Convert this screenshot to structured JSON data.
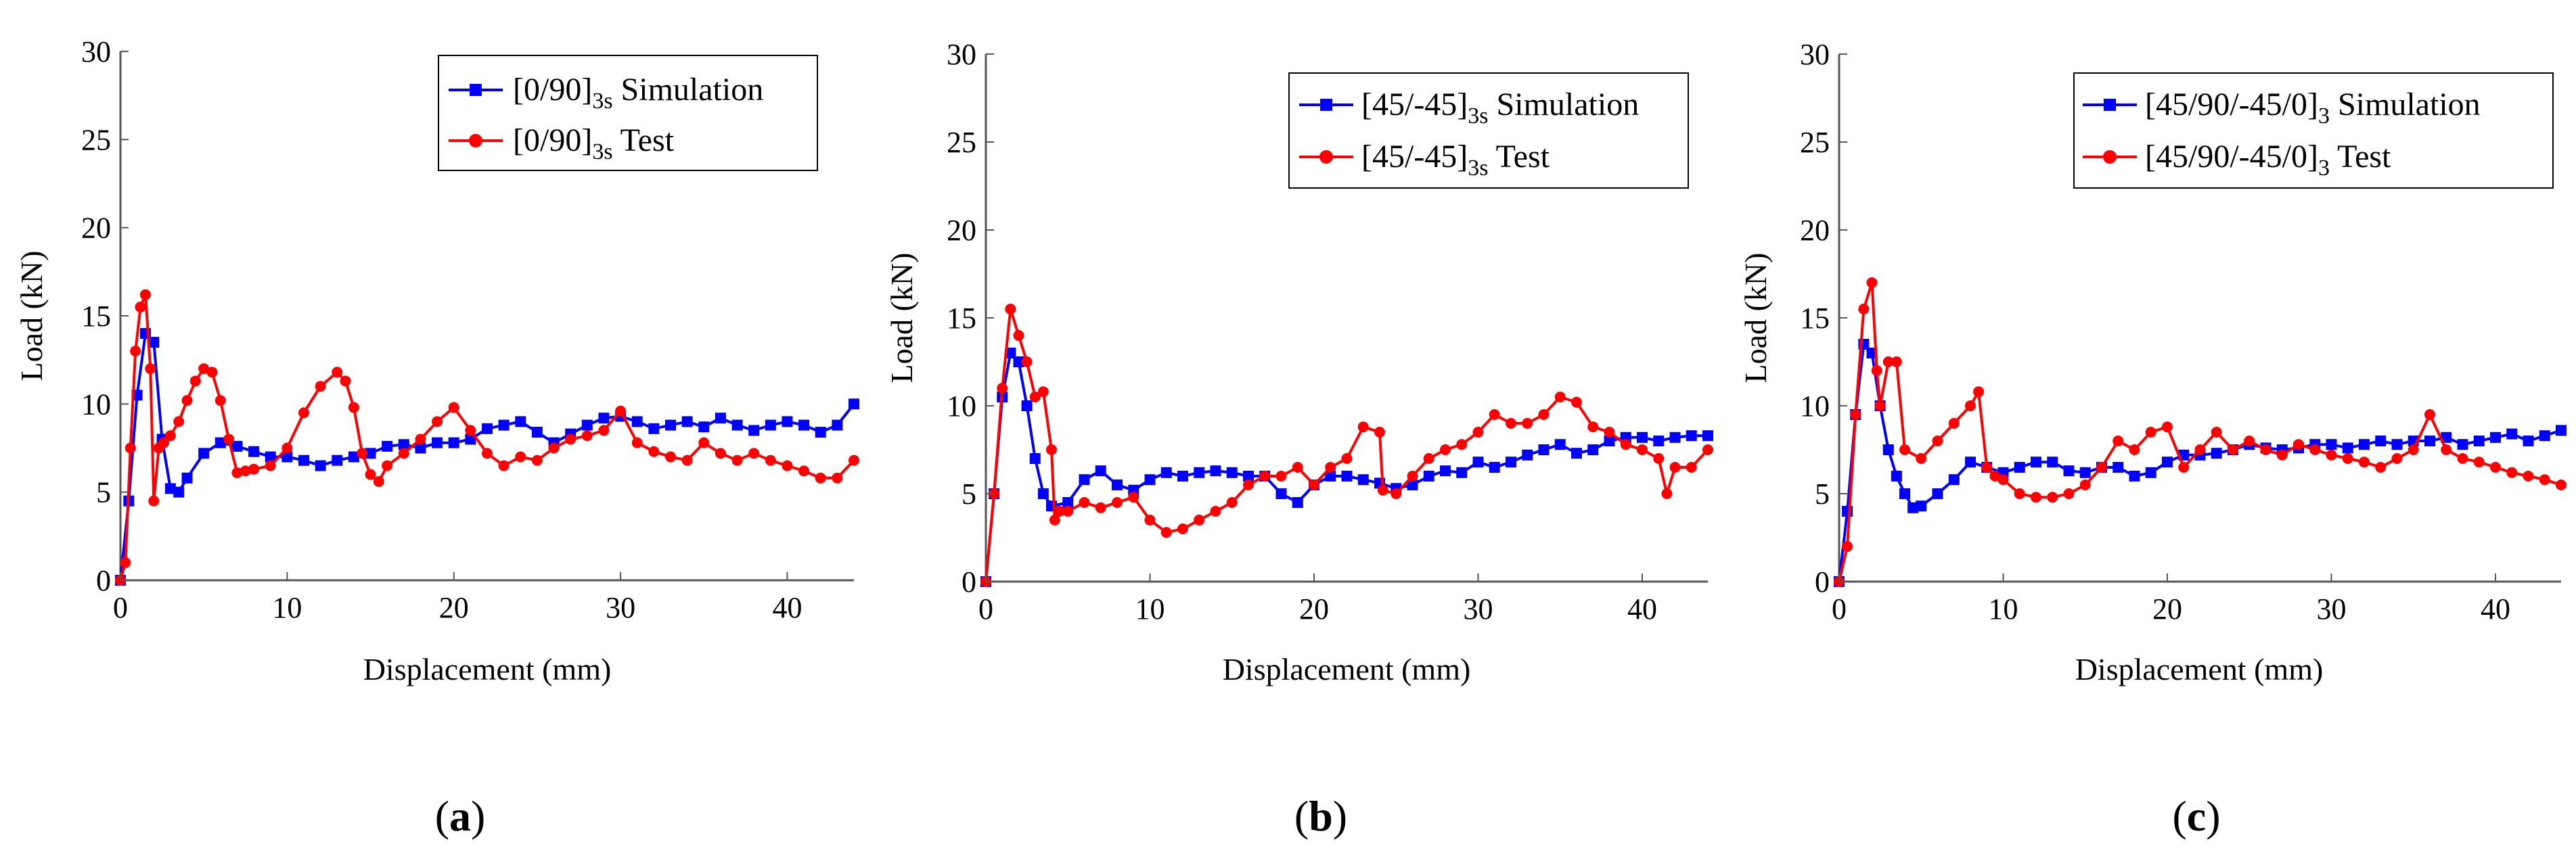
{
  "chart_data": [
    {
      "panel": "a",
      "type": "line",
      "caption_open": "(",
      "caption_letter": "a",
      "caption_close": ")",
      "xlabel": "Displacement (mm)",
      "ylabel": "Load (kN)",
      "xlim": [
        0,
        44
      ],
      "ylim": [
        0,
        30
      ],
      "xticks": [
        0,
        10,
        20,
        30,
        40
      ],
      "yticks": [
        0,
        5,
        10,
        15,
        20,
        25,
        30
      ],
      "grid": false,
      "legend_position": "top-right",
      "series": [
        {
          "name": "[0/90]3s Simulation",
          "legend_main": "[0/90]",
          "legend_sub": "3s",
          "legend_tail": " Simulation",
          "color": "#0000ff",
          "marker": "square",
          "x": [
            0,
            0.5,
            1.0,
            1.5,
            2.0,
            2.5,
            3.0,
            3.5,
            4.0,
            5.0,
            6.0,
            7.0,
            8.0,
            9.0,
            10.0,
            11.0,
            12.0,
            13.0,
            14.0,
            15.0,
            16.0,
            17.0,
            18.0,
            19.0,
            20.0,
            21.0,
            22.0,
            23.0,
            24.0,
            25.0,
            26.0,
            27.0,
            28.0,
            29.0,
            30.0,
            31.0,
            32.0,
            33.0,
            34.0,
            35.0,
            36.0,
            37.0,
            38.0,
            39.0,
            40.0,
            41.0,
            42.0,
            43.0,
            44.0
          ],
          "y": [
            0,
            4.5,
            10.5,
            14.0,
            13.5,
            8.0,
            5.2,
            5.0,
            5.8,
            7.2,
            7.8,
            7.6,
            7.3,
            7.0,
            7.0,
            6.8,
            6.5,
            6.8,
            7.0,
            7.2,
            7.6,
            7.7,
            7.5,
            7.8,
            7.8,
            8.0,
            8.6,
            8.8,
            9.0,
            8.4,
            7.8,
            8.3,
            8.8,
            9.2,
            9.3,
            9.0,
            8.6,
            8.8,
            9.0,
            8.7,
            9.2,
            8.8,
            8.5,
            8.8,
            9.0,
            8.8,
            8.4,
            8.8,
            10.0
          ]
        },
        {
          "name": "[0/90]3s Test",
          "legend_main": "[0/90]",
          "legend_sub": "3s",
          "legend_tail": " Test",
          "color": "#ff0000",
          "marker": "circle",
          "x": [
            0,
            0.3,
            0.6,
            0.9,
            1.2,
            1.5,
            1.8,
            2.0,
            2.3,
            2.6,
            3.0,
            3.5,
            4.0,
            4.5,
            5.0,
            5.5,
            6.0,
            6.5,
            7.0,
            7.5,
            8.0,
            9.0,
            10.0,
            11.0,
            12.0,
            13.0,
            13.5,
            14.0,
            14.5,
            15.0,
            15.5,
            16.0,
            17.0,
            18.0,
            19.0,
            20.0,
            21.0,
            22.0,
            23.0,
            24.0,
            25.0,
            26.0,
            27.0,
            28.0,
            29.0,
            30.0,
            31.0,
            32.0,
            33.0,
            34.0,
            35.0,
            36.0,
            37.0,
            38.0,
            39.0,
            40.0,
            41.0,
            42.0,
            43.0,
            44.0
          ],
          "y": [
            0,
            1.0,
            7.5,
            13.0,
            15.5,
            16.2,
            12.0,
            4.5,
            7.5,
            7.8,
            8.2,
            9.0,
            10.2,
            11.3,
            12.0,
            11.8,
            10.2,
            8.0,
            6.1,
            6.2,
            6.3,
            6.5,
            7.5,
            9.5,
            11.0,
            11.8,
            11.3,
            9.8,
            7.2,
            6.0,
            5.6,
            6.5,
            7.2,
            8.0,
            9.0,
            9.8,
            8.5,
            7.2,
            6.5,
            7.0,
            6.8,
            7.5,
            8.0,
            8.2,
            8.5,
            9.6,
            7.8,
            7.3,
            7.0,
            6.8,
            7.8,
            7.2,
            6.8,
            7.2,
            6.8,
            6.5,
            6.2,
            5.8,
            5.8,
            6.8
          ]
        }
      ]
    },
    {
      "panel": "b",
      "type": "line",
      "caption_open": "(",
      "caption_letter": "b",
      "caption_close": ")",
      "xlabel": "Displacement (mm)",
      "ylabel": "Load (kN)",
      "xlim": [
        0,
        44
      ],
      "ylim": [
        0,
        30
      ],
      "xticks": [
        0,
        10,
        20,
        30,
        40
      ],
      "yticks": [
        0,
        5,
        10,
        15,
        20,
        25,
        30
      ],
      "grid": false,
      "legend_position": "top-right",
      "series": [
        {
          "name": "[45/-45]3s Simulation",
          "legend_main": "[45/-45]",
          "legend_sub": "3s",
          "legend_tail": " Simulation",
          "color": "#0000ff",
          "marker": "square",
          "x": [
            0,
            0.5,
            1.0,
            1.5,
            2.0,
            2.5,
            3.0,
            3.5,
            4.0,
            5.0,
            6.0,
            7.0,
            8.0,
            9.0,
            10.0,
            11.0,
            12.0,
            13.0,
            14.0,
            15.0,
            16.0,
            17.0,
            18.0,
            19.0,
            20.0,
            21.0,
            22.0,
            23.0,
            24.0,
            25.0,
            26.0,
            27.0,
            28.0,
            29.0,
            30.0,
            31.0,
            32.0,
            33.0,
            34.0,
            35.0,
            36.0,
            37.0,
            38.0,
            39.0,
            40.0,
            41.0,
            42.0,
            43.0,
            44.0
          ],
          "y": [
            0,
            5.0,
            10.5,
            13.0,
            12.5,
            10.0,
            7.0,
            5.0,
            4.3,
            4.5,
            5.8,
            6.3,
            5.5,
            5.2,
            5.8,
            6.2,
            6.0,
            6.2,
            6.3,
            6.2,
            6.0,
            6.0,
            5.0,
            4.5,
            5.5,
            6.0,
            6.0,
            5.8,
            5.6,
            5.3,
            5.5,
            6.0,
            6.3,
            6.2,
            6.8,
            6.5,
            6.8,
            7.2,
            7.5,
            7.8,
            7.3,
            7.5,
            8.0,
            8.2,
            8.2,
            8.0,
            8.2,
            8.3,
            8.3
          ]
        },
        {
          "name": "[45/-45]3s Test",
          "legend_main": "[45/-45]",
          "legend_sub": "3s",
          "legend_tail": " Test",
          "color": "#ff0000",
          "marker": "circle",
          "x": [
            0,
            0.5,
            1.0,
            1.5,
            2.0,
            2.5,
            3.0,
            3.5,
            4.0,
            4.2,
            4.5,
            5.0,
            6.0,
            7.0,
            8.0,
            9.0,
            10.0,
            11.0,
            12.0,
            13.0,
            14.0,
            15.0,
            16.0,
            17.0,
            18.0,
            19.0,
            20.0,
            21.0,
            22.0,
            23.0,
            24.0,
            24.2,
            25.0,
            26.0,
            27.0,
            28.0,
            29.0,
            30.0,
            31.0,
            32.0,
            33.0,
            34.0,
            35.0,
            36.0,
            37.0,
            38.0,
            39.0,
            40.0,
            41.0,
            41.5,
            42.0,
            43.0,
            44.0
          ],
          "y": [
            0,
            5.0,
            11.0,
            15.5,
            14.0,
            12.5,
            10.5,
            10.8,
            7.5,
            3.5,
            4.0,
            4.0,
            4.5,
            4.2,
            4.5,
            4.8,
            3.5,
            2.8,
            3.0,
            3.5,
            4.0,
            4.5,
            5.5,
            6.0,
            6.0,
            6.5,
            5.5,
            6.5,
            7.0,
            8.8,
            8.5,
            5.2,
            5.0,
            6.0,
            7.0,
            7.5,
            7.8,
            8.5,
            9.5,
            9.0,
            9.0,
            9.5,
            10.5,
            10.2,
            8.8,
            8.5,
            7.8,
            7.5,
            7.0,
            5.0,
            6.5,
            6.5,
            7.5
          ]
        }
      ]
    },
    {
      "panel": "c",
      "type": "line",
      "caption_open": "(",
      "caption_letter": "c",
      "caption_close": ")",
      "xlabel": "Displacement (mm)",
      "ylabel": "Load (kN)",
      "xlim": [
        0,
        44
      ],
      "ylim": [
        0,
        30
      ],
      "xticks": [
        0,
        10,
        20,
        30,
        40
      ],
      "yticks": [
        0,
        5,
        10,
        15,
        20,
        25,
        30
      ],
      "grid": false,
      "legend_position": "top-right",
      "series": [
        {
          "name": "[45/90/-45/0]3 Simulation",
          "legend_main": "[45/90/-45/0]",
          "legend_sub": "3",
          "legend_tail": " Simulation",
          "color": "#0000ff",
          "marker": "square",
          "x": [
            0,
            0.5,
            1.0,
            1.5,
            2.0,
            2.5,
            3.0,
            3.5,
            4.0,
            4.5,
            5.0,
            6.0,
            7.0,
            8.0,
            9.0,
            10.0,
            11.0,
            12.0,
            13.0,
            14.0,
            15.0,
            16.0,
            17.0,
            18.0,
            19.0,
            20.0,
            21.0,
            22.0,
            23.0,
            24.0,
            25.0,
            26.0,
            27.0,
            28.0,
            29.0,
            30.0,
            31.0,
            32.0,
            33.0,
            34.0,
            35.0,
            36.0,
            37.0,
            38.0,
            39.0,
            40.0,
            41.0,
            42.0,
            43.0,
            44.0
          ],
          "y": [
            0,
            4.0,
            9.5,
            13.5,
            13.0,
            10.0,
            7.5,
            6.0,
            5.0,
            4.2,
            4.3,
            5.0,
            5.8,
            6.8,
            6.5,
            6.2,
            6.5,
            6.8,
            6.8,
            6.3,
            6.2,
            6.5,
            6.5,
            6.0,
            6.2,
            6.8,
            7.2,
            7.2,
            7.3,
            7.5,
            7.8,
            7.6,
            7.5,
            7.6,
            7.8,
            7.8,
            7.6,
            7.8,
            8.0,
            7.8,
            8.0,
            8.0,
            8.2,
            7.8,
            8.0,
            8.2,
            8.4,
            8.0,
            8.3,
            8.6
          ]
        },
        {
          "name": "[45/90/-45/0]3 Test",
          "legend_main": "[45/90/-45/0]",
          "legend_sub": "3",
          "legend_tail": " Test",
          "color": "#ff0000",
          "marker": "circle",
          "x": [
            0,
            0.5,
            1.0,
            1.5,
            2.0,
            2.3,
            2.5,
            3.0,
            3.5,
            4.0,
            5.0,
            6.0,
            7.0,
            8.0,
            8.5,
            9.0,
            9.5,
            10.0,
            11.0,
            12.0,
            13.0,
            14.0,
            15.0,
            16.0,
            17.0,
            18.0,
            19.0,
            20.0,
            21.0,
            22.0,
            23.0,
            24.0,
            25.0,
            26.0,
            27.0,
            28.0,
            29.0,
            30.0,
            31.0,
            32.0,
            33.0,
            34.0,
            35.0,
            36.0,
            37.0,
            38.0,
            39.0,
            40.0,
            41.0,
            42.0,
            43.0,
            44.0
          ],
          "y": [
            0,
            2.0,
            9.5,
            15.5,
            17.0,
            12.0,
            10.0,
            12.5,
            12.5,
            7.5,
            7.0,
            8.0,
            9.0,
            10.0,
            10.8,
            6.5,
            6.0,
            5.8,
            5.0,
            4.8,
            4.8,
            5.0,
            5.5,
            6.5,
            8.0,
            7.5,
            8.5,
            8.8,
            6.5,
            7.5,
            8.5,
            7.5,
            8.0,
            7.5,
            7.2,
            7.8,
            7.5,
            7.2,
            7.0,
            6.8,
            6.5,
            7.0,
            7.5,
            9.5,
            7.5,
            7.0,
            6.8,
            6.5,
            6.2,
            6.0,
            5.8,
            5.5
          ]
        }
      ]
    }
  ]
}
